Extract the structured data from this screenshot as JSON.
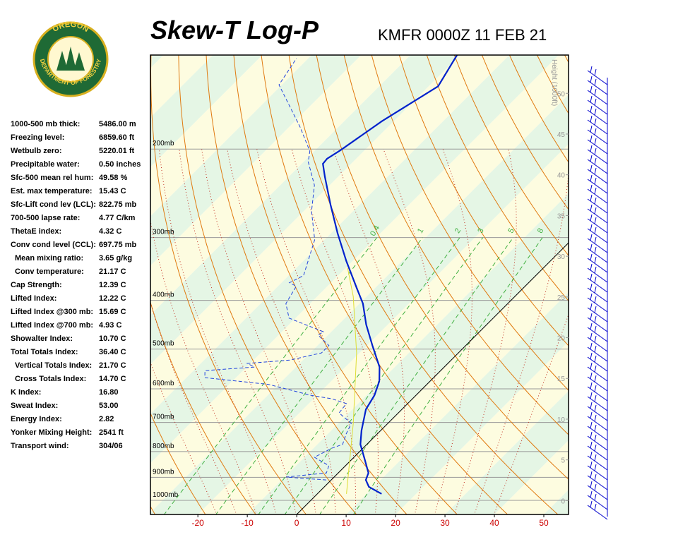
{
  "logo": {
    "top": "OREGON",
    "bottom": "DEPARTMENT OF FORESTRY"
  },
  "indices": [
    {
      "label": "1000-500 mb thick:",
      "value": "5486.00 m"
    },
    {
      "label": "Freezing level:",
      "value": "6859.60 ft"
    },
    {
      "label": "Wetbulb zero:",
      "value": "5220.01 ft"
    },
    {
      "label": "Precipitable water:",
      "value": "0.50 inches"
    },
    {
      "label": "Sfc-500 mean rel hum:",
      "value": "49.58 %"
    },
    {
      "label": "Est. max temperature:",
      "value": "15.43 C"
    },
    {
      "label": "Sfc-Lift cond lev (LCL):",
      "value": "822.75 mb"
    },
    {
      "label": "700-500 lapse rate:",
      "value": "4.77 C/km"
    },
    {
      "label": "ThetaE index:",
      "value": "4.32 C"
    },
    {
      "label": "Conv cond level (CCL):",
      "value": "697.75 mb"
    },
    {
      "label": "Mean mixing ratio:",
      "value": "3.65 g/kg"
    },
    {
      "label": "Conv temperature:",
      "value": "21.17 C"
    },
    {
      "label": "Cap Strength:",
      "value": "12.39 C"
    },
    {
      "label": "Lifted Index:",
      "value": "12.22 C"
    },
    {
      "label": "Lifted Index @300 mb:",
      "value": "15.69 C"
    },
    {
      "label": "Lifted Index @700 mb:",
      "value": "4.93 C"
    },
    {
      "label": "Showalter Index:",
      "value": "10.70 C"
    },
    {
      "label": "Total Totals Index:",
      "value": "36.40 C"
    },
    {
      "label": "Vertical Totals Index:",
      "value": "21.70 C"
    },
    {
      "label": "Cross Totals Index:",
      "value": "14.70 C"
    },
    {
      "label": "K Index:",
      "value": "16.80"
    },
    {
      "label": "Sweat Index:",
      "value": "53.00"
    },
    {
      "label": "Energy Index:",
      "value": "2.82"
    },
    {
      "label": "Yonker Mixing Height:",
      "value": "2541 ft"
    },
    {
      "label": "Transport wind:",
      "value": "304/06"
    }
  ],
  "chart_data": {
    "type": "skewt",
    "title": "Skew-T Log-P",
    "subtitle": "KMFR 0000Z 11 FEB 21",
    "ylim": [
      1067,
      130
    ],
    "yticks": [
      {
        "value": 200,
        "label": "200mb"
      },
      {
        "value": 300,
        "label": "300mb"
      },
      {
        "value": 400,
        "label": "400mb"
      },
      {
        "value": 500,
        "label": "500mb"
      },
      {
        "value": 600,
        "label": "600mb"
      },
      {
        "value": 700,
        "label": "700mb"
      },
      {
        "value": 800,
        "label": "800mb"
      },
      {
        "value": 900,
        "label": "900mb"
      },
      {
        "value": 1000,
        "label": "1000mb"
      }
    ],
    "xlim": [
      -29.6,
      55
    ],
    "xticks": [
      -20,
      -10,
      0,
      10,
      20,
      30,
      40,
      50
    ],
    "y2label": "Height (1000ft)",
    "y2lim": [
      -1.7,
      54.7
    ],
    "y2ticks": [
      0,
      5,
      10,
      15,
      20,
      25,
      30,
      35,
      40,
      45,
      50
    ],
    "mixing_ratio_labels": [
      0.4,
      1,
      2,
      3,
      5,
      8
    ],
    "temperature_profile": {
      "color": "#0022cc",
      "pressure": [
        971,
        940,
        911,
        882,
        826,
        774,
        726,
        659,
        618,
        579,
        543,
        492,
        447,
        406,
        380,
        334,
        294,
        258,
        227,
        214,
        209,
        201,
        176,
        150,
        130
      ],
      "temperature": [
        13.0,
        9.0,
        7.0,
        6.1,
        2.4,
        -1.3,
        -3.9,
        -7.3,
        -8.4,
        -10.3,
        -13.1,
        -18.9,
        -24.4,
        -29.3,
        -33.4,
        -41.3,
        -48.7,
        -55.9,
        -62.7,
        -65.7,
        -65.9,
        -64.9,
        -62.4,
        -58.1,
        -60.6
      ]
    },
    "dewpoint_profile": {
      "color": "#2244dd",
      "pressure": [
        911,
        899,
        882,
        853,
        821,
        787,
        774,
        738,
        703,
        670,
        642,
        628,
        618,
        588,
        570,
        552,
        543,
        534,
        526,
        509,
        492,
        469,
        462,
        434,
        406,
        375,
        369,
        357,
        303,
        266,
        236,
        212,
        202,
        181,
        149,
        132
      ],
      "temperature": [
        -1.0,
        -9.7,
        -2.4,
        -3.4,
        -8.0,
        -6.3,
        -4.9,
        -6.3,
        -7.4,
        -12.0,
        -12.4,
        -16.3,
        -21.3,
        -32.0,
        -46.3,
        -47.7,
        -38.4,
        -40.6,
        -32.7,
        -27.7,
        -27.7,
        -32.0,
        -31.6,
        -41.3,
        -44.9,
        -46.3,
        -48.4,
        -47.0,
        -52.0,
        -58.4,
        -63.1,
        -69.1,
        -70.9,
        -77.7,
        -90.6,
        -92.4
      ]
    },
    "parcel_profile": {
      "color": "#dddd33",
      "pressure": [
        971,
        703,
        509,
        393,
        345
      ],
      "temperature": [
        5.9,
        -7.0,
        -20.6,
        -32.7,
        -39.6
      ]
    }
  }
}
